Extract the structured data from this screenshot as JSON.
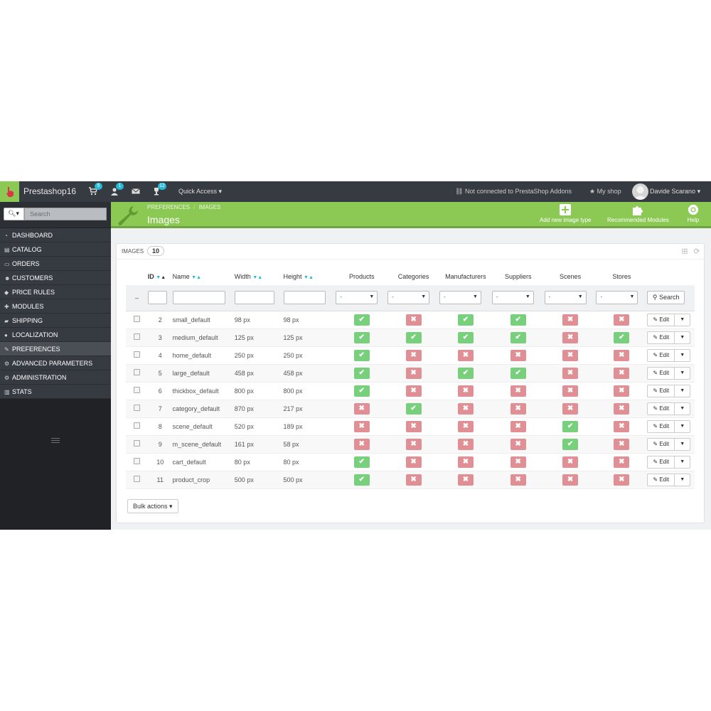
{
  "topbar": {
    "brand": "Prestashop16",
    "orders_badge": "5",
    "customers_badge": "1",
    "notif_badge": "12",
    "quick_access": "Quick Access",
    "addons_status": "Not connected to PrestaShop Addons",
    "my_shop": "My shop",
    "user_name": "Davide Scarano",
    "accent_color": "#8bc954",
    "badge_color": "#25b9d7"
  },
  "sidebar": {
    "search_placeholder": "Search",
    "items": [
      {
        "label": "DASHBOARD",
        "icon": "dashboard-icon"
      },
      {
        "label": "CATALOG",
        "icon": "book-icon"
      },
      {
        "label": "ORDERS",
        "icon": "document-icon"
      },
      {
        "label": "CUSTOMERS",
        "icon": "users-icon"
      },
      {
        "label": "PRICE RULES",
        "icon": "tag-icon"
      },
      {
        "label": "MODULES",
        "icon": "puzzle-icon"
      },
      {
        "label": "SHIPPING",
        "icon": "truck-icon"
      },
      {
        "label": "LOCALIZATION",
        "icon": "globe-icon"
      },
      {
        "label": "PREFERENCES",
        "icon": "wrench-icon"
      },
      {
        "label": "ADVANCED PARAMETERS",
        "icon": "cogs-icon"
      },
      {
        "label": "ADMINISTRATION",
        "icon": "gear-icon"
      },
      {
        "label": "STATS",
        "icon": "bar-chart-icon"
      }
    ]
  },
  "header": {
    "breadcrumb_1": "PREFERENCES",
    "breadcrumb_2": "IMAGES",
    "title": "Images",
    "add_label": "Add new image type",
    "modules_label": "Recommended Modules",
    "help_label": "Help"
  },
  "panel": {
    "title": "IMAGES",
    "count": "10",
    "columns": {
      "id": "ID",
      "name": "Name",
      "width": "Width",
      "height": "Height",
      "products": "Products",
      "categories": "Categories",
      "manufacturers": "Manufacturers",
      "suppliers": "Suppliers",
      "scenes": "Scenes",
      "stores": "Stores"
    },
    "filter_select_value": "-",
    "search_label": "Search",
    "edit_label": "Edit",
    "bulk_label": "Bulk actions",
    "rows": [
      {
        "id": "2",
        "name": "small_default",
        "width": "98 px",
        "height": "98 px",
        "flags": [
          true,
          false,
          true,
          true,
          false,
          false
        ]
      },
      {
        "id": "3",
        "name": "medium_default",
        "width": "125 px",
        "height": "125 px",
        "flags": [
          true,
          true,
          true,
          true,
          false,
          true
        ]
      },
      {
        "id": "4",
        "name": "home_default",
        "width": "250 px",
        "height": "250 px",
        "flags": [
          true,
          false,
          false,
          false,
          false,
          false
        ]
      },
      {
        "id": "5",
        "name": "large_default",
        "width": "458 px",
        "height": "458 px",
        "flags": [
          true,
          false,
          true,
          true,
          false,
          false
        ]
      },
      {
        "id": "6",
        "name": "thickbox_default",
        "width": "800 px",
        "height": "800 px",
        "flags": [
          true,
          false,
          false,
          false,
          false,
          false
        ]
      },
      {
        "id": "7",
        "name": "category_default",
        "width": "870 px",
        "height": "217 px",
        "flags": [
          false,
          true,
          false,
          false,
          false,
          false
        ]
      },
      {
        "id": "8",
        "name": "scene_default",
        "width": "520 px",
        "height": "189 px",
        "flags": [
          false,
          false,
          false,
          false,
          true,
          false
        ]
      },
      {
        "id": "9",
        "name": "m_scene_default",
        "width": "161 px",
        "height": "58 px",
        "flags": [
          false,
          false,
          false,
          false,
          true,
          false
        ]
      },
      {
        "id": "10",
        "name": "cart_default",
        "width": "80 px",
        "height": "80 px",
        "flags": [
          true,
          false,
          false,
          false,
          false,
          false
        ]
      },
      {
        "id": "11",
        "name": "product_crop",
        "width": "500 px",
        "height": "500 px",
        "flags": [
          true,
          false,
          false,
          false,
          false,
          false
        ]
      }
    ]
  }
}
